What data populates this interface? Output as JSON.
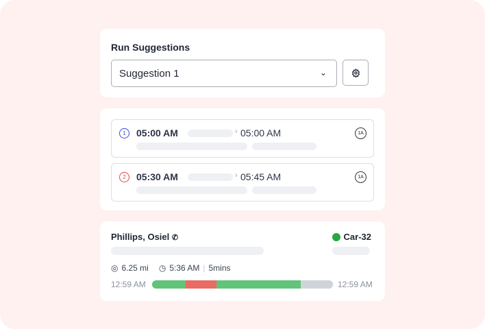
{
  "run_suggestions": {
    "title": "Run Suggestions",
    "selected": "Suggestion 1",
    "settings_icon": "gear-icon"
  },
  "rows": [
    {
      "index": "1",
      "index_color": "#3b4bd8",
      "start": "05:00 AM",
      "end": "05:00 AM",
      "badge": "1A"
    },
    {
      "index": "2",
      "index_color": "#e04343",
      "start": "05:30 AM",
      "end": "05:45 AM",
      "badge": "1A"
    }
  ],
  "driver": {
    "name": "Phillips, Osiel",
    "vehicle": "Car-32",
    "vehicle_status_color": "#27a844",
    "distance": "6.25 mi",
    "time": "5:36 AM",
    "duration": "5mins",
    "start_time": "12:59 AM",
    "end_time": "12:59 AM",
    "timeline": [
      {
        "fraction": 0.186,
        "color": "#62c37a"
      },
      {
        "fraction": 0.17,
        "color": "#e96b63"
      },
      {
        "fraction": 0.466,
        "color": "#62c37a"
      },
      {
        "fraction": 0.178,
        "color": "#cfd4db"
      }
    ]
  }
}
